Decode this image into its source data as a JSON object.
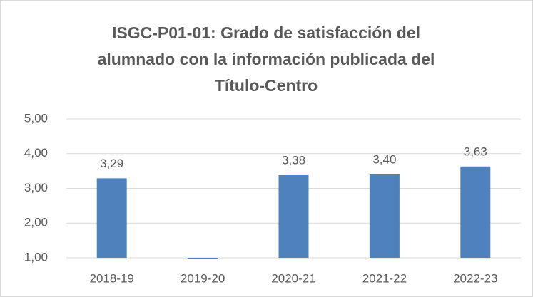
{
  "chart_data": {
    "type": "bar",
    "title": [
      "ISGC-P01-01: Grado de satisfacción del",
      "alumnado con la información publicada del",
      "Título-Centro"
    ],
    "categories": [
      "2018-19",
      "2019-20",
      "2020-21",
      "2021-22",
      "2022-23"
    ],
    "values": [
      3.29,
      0.97,
      3.38,
      3.4,
      3.63
    ],
    "value_labels": [
      "3,29",
      null,
      "3,38",
      "3,40",
      "3,63"
    ],
    "color": "#4f81bd",
    "ylim": [
      1,
      5
    ],
    "yticks": [
      {
        "value": 1,
        "label": "1,00"
      },
      {
        "value": 2,
        "label": "2,00"
      },
      {
        "value": 3,
        "label": "3,00"
      },
      {
        "value": 4,
        "label": "4,00"
      },
      {
        "value": 5,
        "label": "5,00"
      }
    ],
    "grid": true
  }
}
